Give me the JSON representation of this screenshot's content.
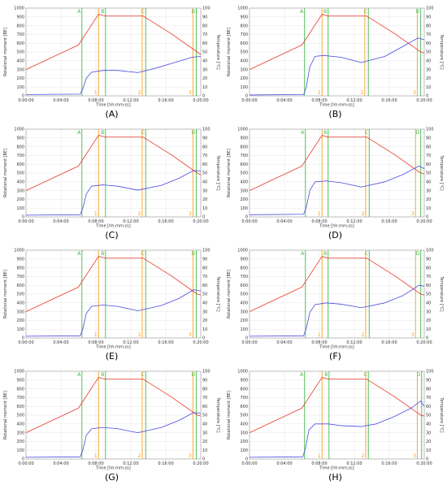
{
  "colors": {
    "moment": "#e8372a",
    "temperature": "#4a4ae0",
    "phase_line": "#3cb84a",
    "event_line": "#f5a020",
    "grid": "#e6e6e6",
    "frame": "#999999"
  },
  "chart_data": [
    {
      "type": "line",
      "panel_label": "(A)",
      "xlabel": "Time [hh:mm:ss]",
      "ylabel_left": "Rotational moment [BE]",
      "ylabel_right": "Temperature [°C]",
      "x_ticks": [
        "0:00:00",
        "0:04:00",
        "0:08:00",
        "0:12:00",
        "0:16:00",
        "0:20:00"
      ],
      "y_left_ticks": [
        0,
        100,
        200,
        300,
        400,
        500,
        600,
        700,
        800,
        900,
        1000
      ],
      "y_right_ticks": [
        0,
        10,
        20,
        30,
        40,
        50,
        60,
        70,
        80,
        90,
        100
      ],
      "xlim": [
        0,
        20
      ],
      "ylim_left": [
        0,
        1000
      ],
      "ylim_right": [
        0,
        100
      ],
      "phase_lines": [
        {
          "label": "A",
          "x": 6.4
        },
        {
          "label": "B",
          "x": 9.1
        },
        {
          "label": "C",
          "x": 13.7
        },
        {
          "label": "D",
          "x": 19.5
        }
      ],
      "event_lines": [
        {
          "label": "1",
          "x": 8.3
        },
        {
          "label": "2",
          "x": 13.3
        },
        {
          "label": "3",
          "x": 19.1
        }
      ],
      "series": [
        {
          "axis": "right",
          "x": [
            0,
            6,
            8.3,
            9.1,
            10.5,
            13.4,
            16.6,
            19.6,
            20
          ],
          "y": [
            30,
            58,
            93,
            91,
            91,
            91,
            71,
            50,
            47
          ]
        },
        {
          "axis": "left",
          "x": [
            0,
            6.2,
            6.5,
            6.9,
            7.5,
            8.8,
            10.5,
            12.8,
            15,
            17,
            19,
            20
          ],
          "y": [
            15,
            20,
            80,
            200,
            270,
            290,
            290,
            265,
            320,
            380,
            440,
            450
          ]
        }
      ]
    },
    {
      "type": "line",
      "panel_label": "(B)",
      "xlabel": "Time [hh:mm:ss]",
      "ylabel_left": "Rotational moment [BE]",
      "ylabel_right": "Temperature [°C]",
      "x_ticks": [
        "0:00:00",
        "0:04:00",
        "0:08:00",
        "0:12:00",
        "0:16:00",
        "0:20:00"
      ],
      "y_left_ticks": [
        0,
        100,
        200,
        300,
        400,
        500,
        600,
        700,
        800,
        900,
        1000
      ],
      "y_right_ticks": [
        0,
        10,
        20,
        30,
        40,
        50,
        60,
        70,
        80,
        90,
        100
      ],
      "xlim": [
        0,
        20
      ],
      "ylim_left": [
        0,
        1000
      ],
      "ylim_right": [
        0,
        100
      ],
      "phase_lines": [
        {
          "label": "A",
          "x": 6.3
        },
        {
          "label": "B",
          "x": 9.0
        },
        {
          "label": "C",
          "x": 13.6
        },
        {
          "label": "D",
          "x": 19.6
        }
      ],
      "event_lines": [
        {
          "label": "1",
          "x": 8.3
        },
        {
          "label": "2",
          "x": 13.2
        },
        {
          "label": "3",
          "x": 19.2
        }
      ],
      "series": [
        {
          "axis": "right",
          "x": [
            0,
            6,
            8.3,
            9.0,
            10.5,
            13.4,
            16.6,
            19.6,
            20
          ],
          "y": [
            30,
            58,
            93,
            91,
            91,
            91,
            71,
            50,
            49
          ]
        },
        {
          "axis": "left",
          "x": [
            0,
            6.2,
            6.5,
            6.9,
            7.5,
            8.5,
            10.5,
            12.8,
            15.5,
            17.5,
            19.3,
            20
          ],
          "y": [
            10,
            15,
            100,
            330,
            450,
            460,
            440,
            380,
            450,
            560,
            660,
            640
          ]
        }
      ]
    },
    {
      "type": "line",
      "panel_label": "(C)",
      "xlabel": "Time [hh:mm:ss]",
      "ylabel_left": "Rotational moment [BE]",
      "ylabel_right": "Temperature [°C]",
      "x_ticks": [
        "0:00:00",
        "0:04:00",
        "0:08:00",
        "0:12:00",
        "0:16:00",
        "0:20:00"
      ],
      "y_left_ticks": [
        0,
        100,
        200,
        300,
        400,
        500,
        600,
        700,
        800,
        900,
        1000
      ],
      "y_right_ticks": [
        0,
        10,
        20,
        30,
        40,
        50,
        60,
        70,
        80,
        90,
        100
      ],
      "xlim": [
        0,
        20
      ],
      "ylim_left": [
        0,
        1000
      ],
      "ylim_right": [
        0,
        100
      ],
      "phase_lines": [
        {
          "label": "A",
          "x": 6.4
        },
        {
          "label": "B",
          "x": 9.1
        },
        {
          "label": "C",
          "x": 13.7
        },
        {
          "label": "D",
          "x": 19.5
        }
      ],
      "event_lines": [
        {
          "label": "1",
          "x": 8.3
        },
        {
          "label": "2",
          "x": 13.3
        },
        {
          "label": "3",
          "x": 19.1
        }
      ],
      "series": [
        {
          "axis": "right",
          "x": [
            0,
            6,
            8.3,
            9.1,
            10.5,
            13.4,
            16.6,
            19.6,
            20
          ],
          "y": [
            30,
            58,
            93,
            91,
            91,
            91,
            71,
            50,
            48
          ]
        },
        {
          "axis": "left",
          "x": [
            0,
            6.2,
            6.5,
            6.9,
            7.5,
            8.8,
            10.5,
            12.8,
            15.5,
            17.5,
            19.2,
            20
          ],
          "y": [
            20,
            25,
            100,
            260,
            350,
            365,
            350,
            305,
            360,
            440,
            530,
            520
          ]
        }
      ]
    },
    {
      "type": "line",
      "panel_label": "(D)",
      "xlabel": "Time [hh:mm:ss]",
      "ylabel_left": "Rotational moment [BE]",
      "ylabel_right": "Temperature [°C]",
      "x_ticks": [
        "0:00:00",
        "0:04:00",
        "0:08:00",
        "0:12:00",
        "0:16:00",
        "0:20:00"
      ],
      "y_left_ticks": [
        0,
        100,
        200,
        300,
        400,
        500,
        600,
        700,
        800,
        900,
        1000
      ],
      "y_right_ticks": [
        0,
        10,
        20,
        30,
        40,
        50,
        60,
        70,
        80,
        90,
        100
      ],
      "xlim": [
        0,
        20
      ],
      "ylim_left": [
        0,
        1000
      ],
      "ylim_right": [
        0,
        100
      ],
      "phase_lines": [
        {
          "label": "A",
          "x": 6.4
        },
        {
          "label": "B",
          "x": 9.0
        },
        {
          "label": "C",
          "x": 13.7
        },
        {
          "label": "D",
          "x": 19.6
        }
      ],
      "event_lines": [
        {
          "label": "1",
          "x": 8.3
        },
        {
          "label": "2",
          "x": 13.3
        },
        {
          "label": "3",
          "x": 19.0
        }
      ],
      "series": [
        {
          "axis": "right",
          "x": [
            0,
            6,
            8.3,
            9.0,
            10.5,
            13.4,
            16.6,
            19.6,
            20
          ],
          "y": [
            30,
            58,
            93,
            91,
            91,
            91,
            71,
            50,
            49
          ]
        },
        {
          "axis": "left",
          "x": [
            0,
            6.2,
            6.5,
            6.9,
            7.5,
            8.8,
            10.5,
            12.8,
            15.5,
            17.5,
            19.4,
            20
          ],
          "y": [
            25,
            30,
            110,
            300,
            400,
            410,
            390,
            340,
            400,
            480,
            580,
            550
          ]
        }
      ]
    },
    {
      "type": "line",
      "panel_label": "(E)",
      "xlabel": "Time [hh:mm:ss]",
      "ylabel_left": "Rotational moment [BE]",
      "ylabel_right": "Temperature [°C]",
      "x_ticks": [
        "0:00:00",
        "0:04:00",
        "0:08:00",
        "0:12:00",
        "0:16:00",
        "0:20:00"
      ],
      "y_left_ticks": [
        0,
        100,
        200,
        300,
        400,
        500,
        600,
        700,
        800,
        900,
        1000
      ],
      "y_right_ticks": [
        0,
        10,
        20,
        30,
        40,
        50,
        60,
        70,
        80,
        90,
        100
      ],
      "xlim": [
        0,
        20
      ],
      "ylim_left": [
        0,
        1000
      ],
      "ylim_right": [
        0,
        100
      ],
      "phase_lines": [
        {
          "label": "A",
          "x": 6.4
        },
        {
          "label": "B",
          "x": 9.1
        },
        {
          "label": "C",
          "x": 13.7
        },
        {
          "label": "D",
          "x": 19.5
        }
      ],
      "event_lines": [
        {
          "label": "1",
          "x": 8.3
        },
        {
          "label": "2",
          "x": 13.3
        },
        {
          "label": "3",
          "x": 19.1
        }
      ],
      "series": [
        {
          "axis": "right",
          "x": [
            0,
            6,
            8.3,
            9.1,
            10.5,
            13.4,
            16.6,
            19.6,
            20
          ],
          "y": [
            30,
            58,
            93,
            91,
            91,
            91,
            71,
            50,
            49
          ]
        },
        {
          "axis": "left",
          "x": [
            0,
            6.2,
            6.5,
            6.9,
            7.5,
            8.8,
            10.5,
            12.8,
            15.5,
            17.5,
            19.2,
            20
          ],
          "y": [
            20,
            25,
            100,
            280,
            360,
            375,
            360,
            310,
            370,
            450,
            550,
            535
          ]
        }
      ]
    },
    {
      "type": "line",
      "panel_label": "(F)",
      "xlabel": "Time [hh:mm:ss]",
      "ylabel_left": "Rotational moment [BE]",
      "ylabel_right": "Temperature [°C]",
      "x_ticks": [
        "0:00:00",
        "0:04:00",
        "0:08:00",
        "0:12:00",
        "0:16:00",
        "0:20:00"
      ],
      "y_left_ticks": [
        0,
        100,
        200,
        300,
        400,
        500,
        600,
        700,
        800,
        900,
        1000
      ],
      "y_right_ticks": [
        0,
        10,
        20,
        30,
        40,
        50,
        60,
        70,
        80,
        90,
        100
      ],
      "xlim": [
        0,
        20
      ],
      "ylim_left": [
        0,
        1000
      ],
      "ylim_right": [
        0,
        100
      ],
      "phase_lines": [
        {
          "label": "A",
          "x": 6.4
        },
        {
          "label": "B",
          "x": 9.0
        },
        {
          "label": "C",
          "x": 13.7
        },
        {
          "label": "D",
          "x": 19.6
        }
      ],
      "event_lines": [
        {
          "label": "1",
          "x": 8.3
        },
        {
          "label": "2",
          "x": 13.3
        },
        {
          "label": "3",
          "x": 19.0
        }
      ],
      "series": [
        {
          "axis": "right",
          "x": [
            0,
            6,
            8.3,
            9.0,
            10.5,
            13.4,
            16.6,
            19.6,
            20
          ],
          "y": [
            30,
            58,
            93,
            91,
            91,
            91,
            71,
            50,
            49
          ]
        },
        {
          "axis": "left",
          "x": [
            0,
            6.2,
            6.5,
            6.9,
            7.5,
            8.8,
            10.5,
            12.8,
            15.5,
            17.5,
            19.4,
            20
          ],
          "y": [
            20,
            25,
            110,
            290,
            380,
            400,
            385,
            345,
            400,
            480,
            600,
            590
          ]
        }
      ]
    },
    {
      "type": "line",
      "panel_label": "(G)",
      "xlabel": "Time [hh:mm:ss]",
      "ylabel_left": "Rotational moment [BE]",
      "ylabel_right": "Temperature [°C]",
      "x_ticks": [
        "0:00:00",
        "0:04:00",
        "0:08:00",
        "0:12:00",
        "0:16:00",
        "0:20:00"
      ],
      "y_left_ticks": [
        0,
        100,
        200,
        300,
        400,
        500,
        600,
        700,
        800,
        900,
        1000
      ],
      "y_right_ticks": [
        0,
        10,
        20,
        30,
        40,
        50,
        60,
        70,
        80,
        90,
        100
      ],
      "xlim": [
        0,
        20
      ],
      "ylim_left": [
        0,
        1000
      ],
      "ylim_right": [
        0,
        100
      ],
      "phase_lines": [
        {
          "label": "A",
          "x": 6.4
        },
        {
          "label": "B",
          "x": 9.1
        },
        {
          "label": "C",
          "x": 13.7
        },
        {
          "label": "D",
          "x": 19.5
        }
      ],
      "event_lines": [
        {
          "label": "1",
          "x": 8.3
        },
        {
          "label": "2",
          "x": 13.3
        },
        {
          "label": "3",
          "x": 19.1
        }
      ],
      "series": [
        {
          "axis": "right",
          "x": [
            0,
            6,
            8.3,
            9.1,
            10.5,
            13.4,
            16.6,
            19.6,
            20
          ],
          "y": [
            30,
            58,
            93,
            91,
            91,
            91,
            71,
            50,
            49
          ]
        },
        {
          "axis": "left",
          "x": [
            0,
            6.2,
            6.5,
            6.9,
            7.5,
            8.8,
            10.5,
            12.8,
            15.5,
            17.5,
            19.2,
            20
          ],
          "y": [
            20,
            25,
            100,
            270,
            345,
            360,
            345,
            300,
            360,
            440,
            530,
            520
          ]
        }
      ]
    },
    {
      "type": "line",
      "panel_label": "(H)",
      "xlabel": "Time [hh:mm:ss]",
      "ylabel_left": "Rotational moment [BE]",
      "ylabel_right": "Temperature [°C]",
      "x_ticks": [
        "0:00:00",
        "0:04:00",
        "0:08:00",
        "0:12:00",
        "0:16:00",
        "0:20:00"
      ],
      "y_left_ticks": [
        0,
        100,
        200,
        300,
        400,
        500,
        600,
        700,
        800,
        900,
        1000
      ],
      "y_right_ticks": [
        0,
        10,
        20,
        30,
        40,
        50,
        60,
        70,
        80,
        90,
        100
      ],
      "xlim": [
        0,
        20
      ],
      "ylim_left": [
        0,
        1000
      ],
      "ylim_right": [
        0,
        100
      ],
      "phase_lines": [
        {
          "label": "A",
          "x": 6.3
        },
        {
          "label": "B",
          "x": 9.1
        },
        {
          "label": "C",
          "x": 13.6
        },
        {
          "label": "D",
          "x": 19.7
        }
      ],
      "event_lines": [
        {
          "label": "1",
          "x": 8.3
        },
        {
          "label": "2",
          "x": 13.3
        },
        {
          "label": "3",
          "x": 19.2
        }
      ],
      "series": [
        {
          "axis": "right",
          "x": [
            0,
            6,
            8.3,
            9.1,
            10.5,
            13.4,
            16.6,
            19.6,
            20
          ],
          "y": [
            30,
            58,
            93,
            91,
            91,
            91,
            71,
            50,
            49
          ]
        },
        {
          "axis": "left",
          "x": [
            0,
            6.1,
            6.4,
            6.8,
            7.5,
            9.0,
            10.5,
            12.8,
            14.5,
            16.5,
            18.5,
            19.6,
            20
          ],
          "y": [
            20,
            25,
            120,
            330,
            400,
            400,
            380,
            370,
            400,
            480,
            580,
            660,
            600
          ]
        }
      ]
    }
  ]
}
